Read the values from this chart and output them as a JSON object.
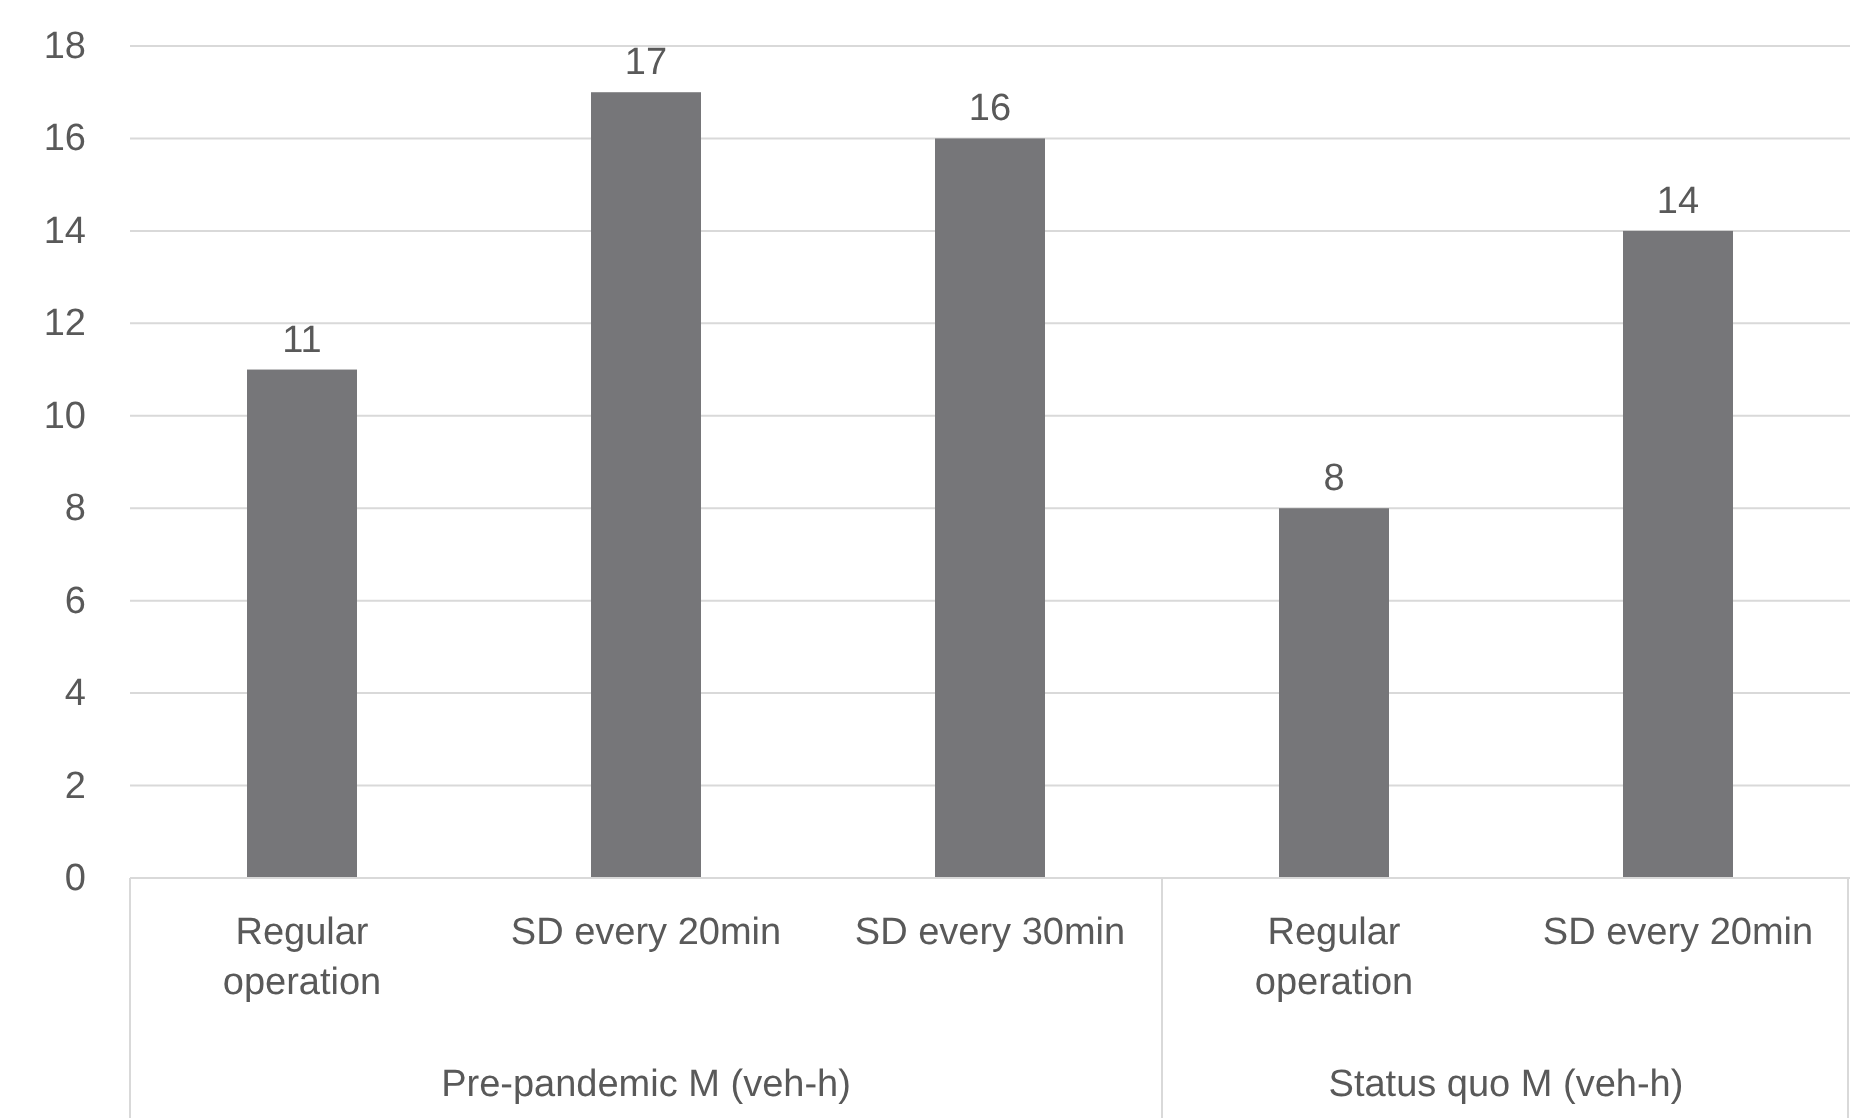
{
  "chart_data": {
    "type": "bar",
    "categories": [
      "Regular operation",
      "SD every 20min",
      "SD every 30min",
      "Regular operation",
      "SD every 20min"
    ],
    "values": [
      11,
      17,
      16,
      8,
      14
    ],
    "color": "#767679",
    "data_labels": true,
    "ylim": [
      0,
      18
    ],
    "yticks": [
      0,
      2,
      4,
      6,
      8,
      10,
      12,
      14,
      16,
      18
    ],
    "grid": "y",
    "annotations": [
      "Pre-pandemic M (veh-h)",
      "Status quo M (veh-h)"
    ]
  }
}
